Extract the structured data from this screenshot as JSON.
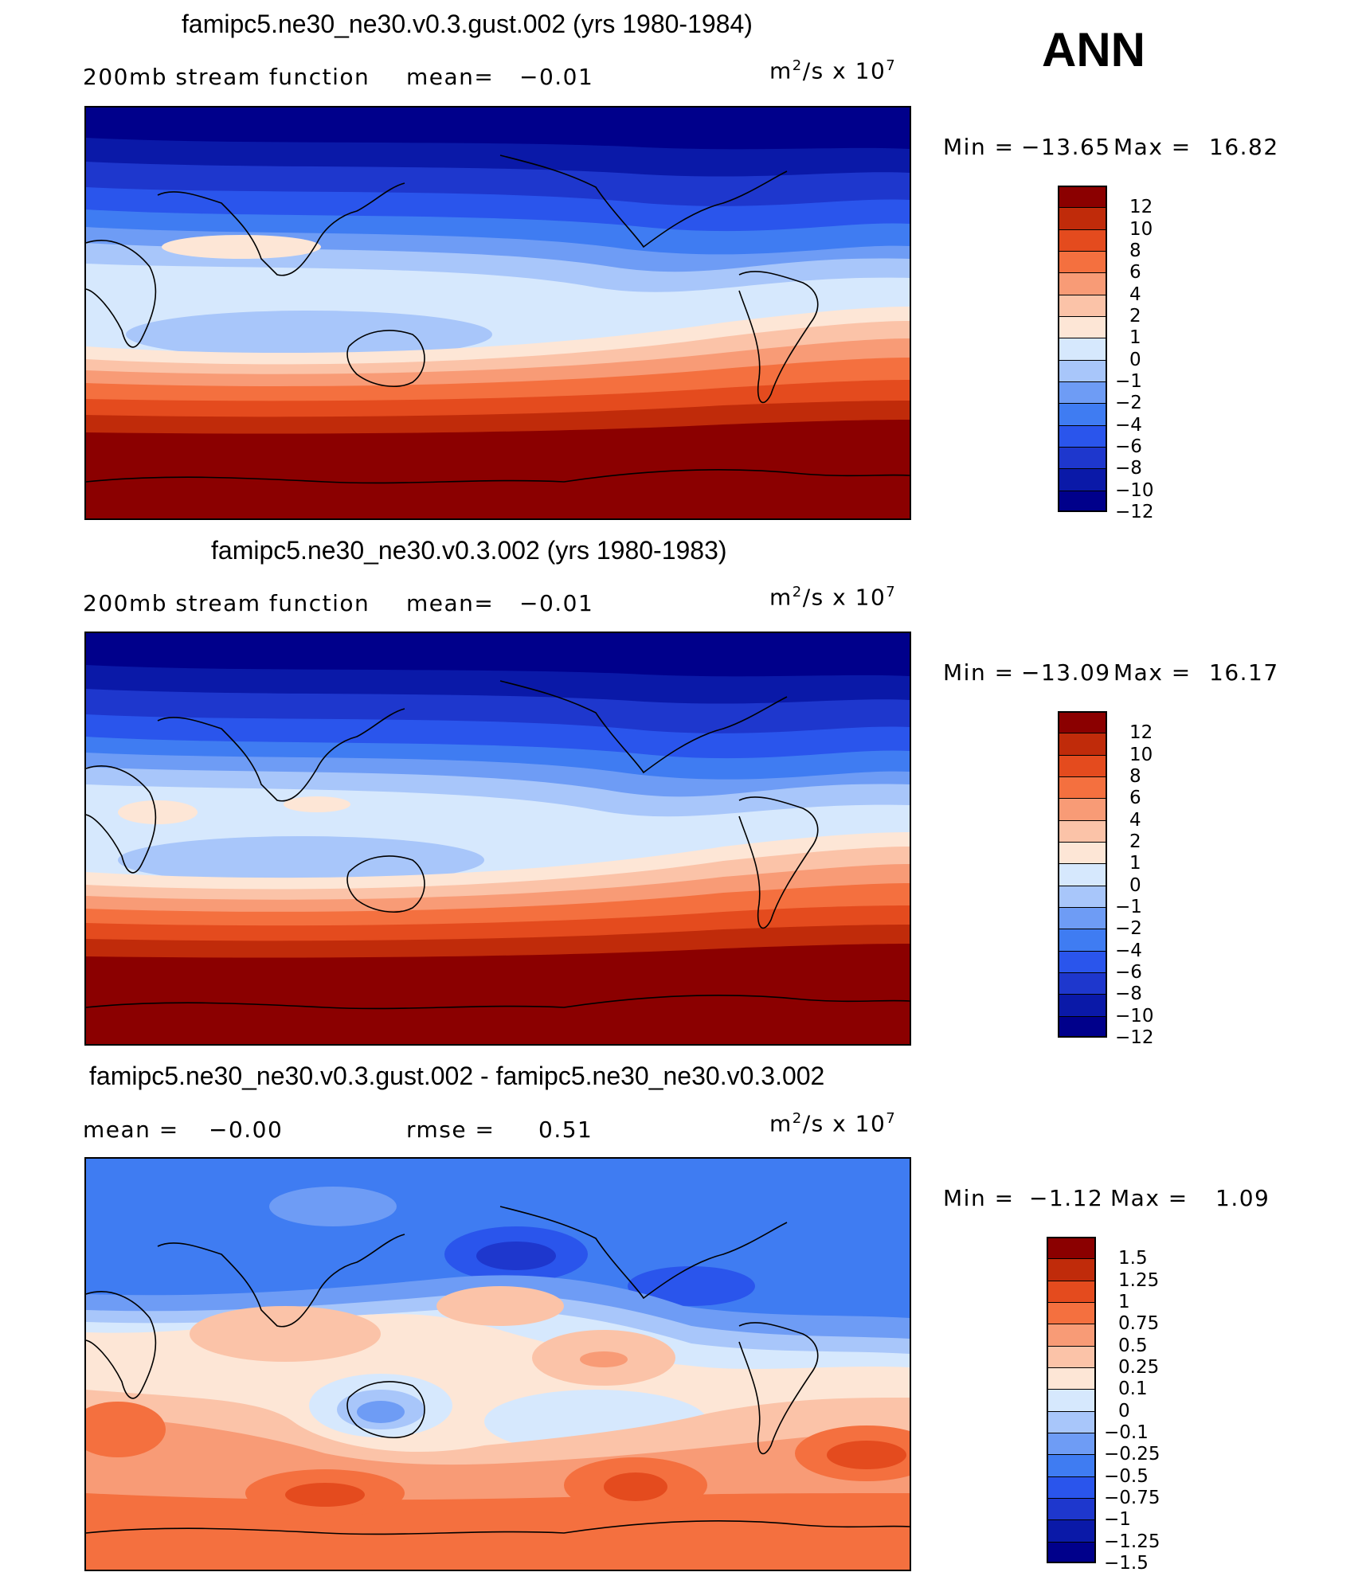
{
  "season": "ANN",
  "colors": {
    "main": [
      "#00008b",
      "#0a19a8",
      "#1e37cd",
      "#2a55ec",
      "#3f7cf2",
      "#6e9cf5",
      "#a8c6fa",
      "#d6e8fd",
      "#fde6d6",
      "#fbc3a8",
      "#f89b76",
      "#f4703f",
      "#e44b1e",
      "#c02b0a",
      "#8b0000"
    ],
    "diff": [
      "#00008b",
      "#0a19a8",
      "#1e37cd",
      "#2a55ec",
      "#3f7cf2",
      "#6e9cf5",
      "#a8c6fa",
      "#d6e8fd",
      "#fde6d6",
      "#fbc3a8",
      "#f89b76",
      "#f4703f",
      "#e44b1e",
      "#c02b0a",
      "#8b0000"
    ]
  },
  "chart_data": [
    {
      "type": "contour-map",
      "title": "famipc5.ne30_ne30.v0.3.gust.002 (yrs 1980-1984)",
      "left_label": "200mb stream function",
      "mean_label": "mean=",
      "mean_value": "−0.01",
      "units_base": "m",
      "units_sup": "2",
      "units_mid": "/s x 10",
      "units_exp": "7",
      "min_label": "Min =",
      "min_value": "−13.65",
      "max_label": "Max =",
      "max_value": "16.82",
      "levels": [
        "12",
        "10",
        "8",
        "6",
        "4",
        "2",
        "1",
        "0",
        "−1",
        "−2",
        "−4",
        "−6",
        "−8",
        "−10",
        "−12"
      ]
    },
    {
      "type": "contour-map",
      "title": "famipc5.ne30_ne30.v0.3.002 (yrs 1980-1983)",
      "left_label": "200mb stream function",
      "mean_label": "mean=",
      "mean_value": "−0.01",
      "units_base": "m",
      "units_sup": "2",
      "units_mid": "/s x 10",
      "units_exp": "7",
      "min_label": "Min =",
      "min_value": "−13.09",
      "max_label": "Max =",
      "max_value": "16.17",
      "levels": [
        "12",
        "10",
        "8",
        "6",
        "4",
        "2",
        "1",
        "0",
        "−1",
        "−2",
        "−4",
        "−6",
        "−8",
        "−10",
        "−12"
      ]
    },
    {
      "type": "contour-map",
      "title": "famipc5.ne30_ne30.v0.3.gust.002 - famipc5.ne30_ne30.v0.3.002",
      "mean_label": "mean =",
      "mean_value": "−0.00",
      "rmse_label": "rmse =",
      "rmse_value": "0.51",
      "units_base": "m",
      "units_sup": "2",
      "units_mid": "/s x 10",
      "units_exp": "7",
      "min_label": "Min =",
      "min_value": "−1.12",
      "max_label": "Max =",
      "max_value": "1.09",
      "levels": [
        "1.5",
        "1.25",
        "1",
        "0.75",
        "0.5",
        "0.25",
        "0.1",
        "0",
        "−0.1",
        "−0.25",
        "−0.5",
        "−0.75",
        "−1",
        "−1.25",
        "−1.5"
      ]
    }
  ]
}
